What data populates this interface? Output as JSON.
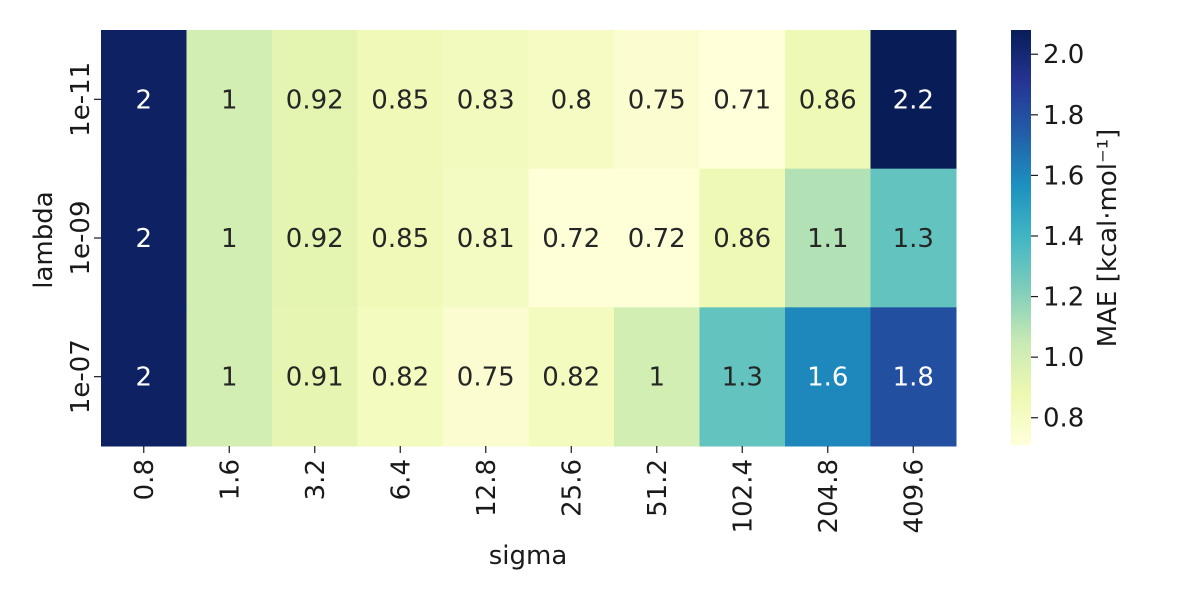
{
  "chart_data": {
    "type": "heatmap",
    "xlabel": "sigma",
    "ylabel": "lambda",
    "x_categories": [
      "0.8",
      "1.6",
      "3.2",
      "6.4",
      "12.8",
      "25.6",
      "51.2",
      "102.4",
      "204.8",
      "409.6"
    ],
    "y_categories": [
      "1e-11",
      "1e-09",
      "1e-07"
    ],
    "values": [
      [
        2.05,
        1.0,
        0.92,
        0.85,
        0.83,
        0.8,
        0.75,
        0.71,
        0.86,
        2.2
      ],
      [
        2.05,
        1.0,
        0.92,
        0.85,
        0.81,
        0.72,
        0.72,
        0.86,
        1.1,
        1.3
      ],
      [
        2.05,
        1.0,
        0.91,
        0.82,
        0.75,
        0.82,
        1.0,
        1.3,
        1.6,
        1.8
      ]
    ],
    "annotations": [
      [
        "2",
        "1",
        "0.92",
        "0.85",
        "0.83",
        "0.8",
        "0.75",
        "0.71",
        "0.86",
        "2.2"
      ],
      [
        "2",
        "1",
        "0.92",
        "0.85",
        "0.81",
        "0.72",
        "0.72",
        "0.86",
        "1.1",
        "1.3"
      ],
      [
        "2",
        "1",
        "0.91",
        "0.82",
        "0.75",
        "0.82",
        "1",
        "1.3",
        "1.6",
        "1.8"
      ]
    ],
    "colorbar": {
      "label": "MAE [kcal·mol⁻¹]",
      "range": [
        0.71,
        2.08
      ],
      "ticks": [
        "0.8",
        "1.0",
        "1.2",
        "1.4",
        "1.6",
        "1.8",
        "2.0"
      ],
      "colormap": "YlGnBu",
      "stops": [
        "#ffffd9",
        "#edf8b1",
        "#c7e9b4",
        "#7fcdbb",
        "#41b6c4",
        "#1d91c0",
        "#225ea8",
        "#253494",
        "#081d58"
      ]
    }
  }
}
